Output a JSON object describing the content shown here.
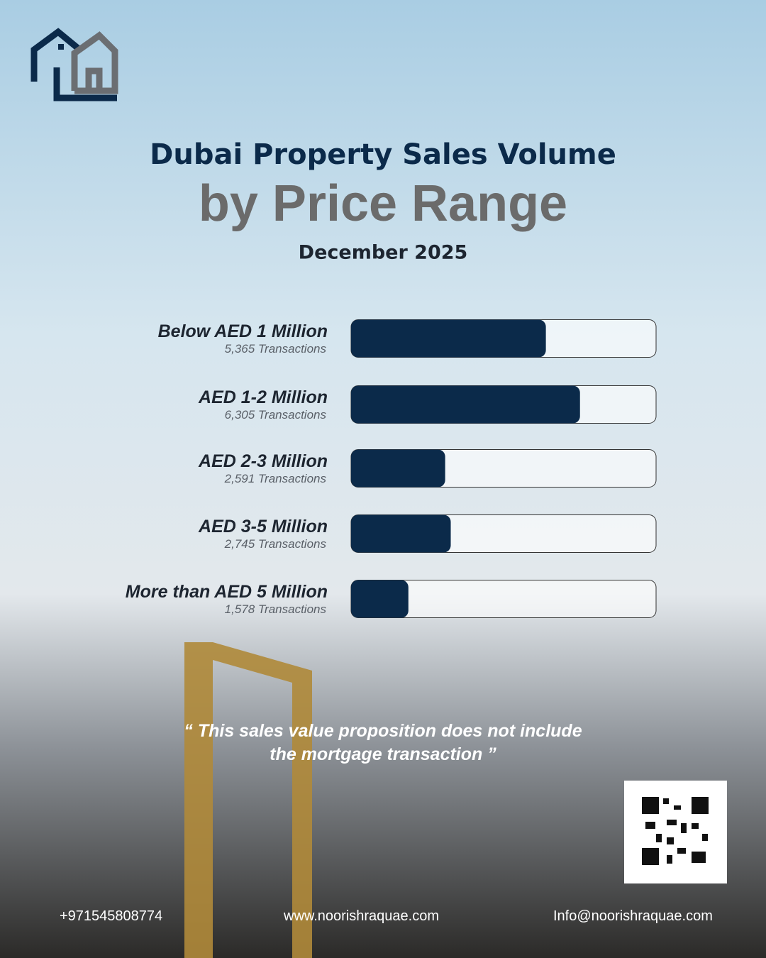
{
  "chart_data": {
    "type": "bar",
    "orientation": "horizontal",
    "title": "Dubai Property Sales Volume",
    "subtitle": "by Price Range",
    "date": "December 2025",
    "categories": [
      "Below AED 1 Million",
      "AED 1-2 Million",
      "AED 2-3 Million",
      "AED 3-5 Million",
      "More than AED 5 Million"
    ],
    "values": [
      5365,
      6305,
      2591,
      2745,
      1578
    ],
    "value_labels": [
      "5,365 Transactions",
      "6,305 Transactions",
      "2,591 Transactions",
      "2,745 Transactions",
      "1,578 Transactions"
    ],
    "color": "#0b2a4a",
    "xlim": [
      0,
      8400
    ]
  },
  "note": "“ This sales value proposition does not include the mortgage transaction ”",
  "footer": {
    "phone": "+971545808774",
    "website": "www.noorishraquae.com",
    "email": "Info@noorishraquae.com"
  }
}
